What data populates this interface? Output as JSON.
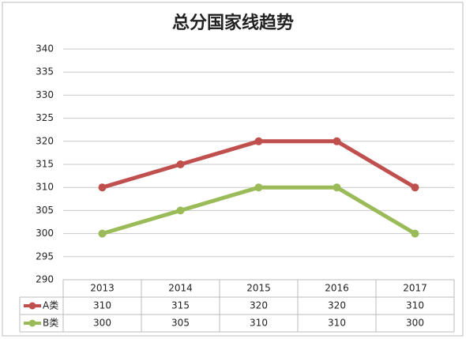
{
  "chart_data": {
    "type": "line",
    "title": "总分国家线趋势",
    "categories": [
      "2013",
      "2014",
      "2015",
      "2016",
      "2017"
    ],
    "series": [
      {
        "name": "A类",
        "color": "#c0504d",
        "values": [
          310,
          315,
          320,
          320,
          310
        ]
      },
      {
        "name": "B类",
        "color": "#9bbb59",
        "values": [
          300,
          305,
          310,
          310,
          300
        ]
      }
    ],
    "ylim": [
      290,
      340
    ],
    "yticks": [
      290,
      295,
      300,
      305,
      310,
      315,
      320,
      325,
      330,
      335,
      340
    ],
    "grid": true
  }
}
